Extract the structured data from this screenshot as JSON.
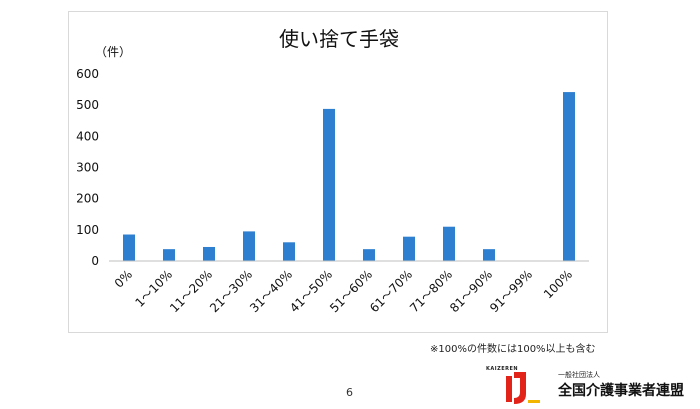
{
  "chart_data": {
    "type": "bar",
    "title": "使い捨て手袋",
    "ylabel": "（件）",
    "xlabel": "",
    "ylim": [
      0,
      600
    ],
    "yticks": [
      0,
      100,
      200,
      300,
      400,
      500,
      600
    ],
    "categories": [
      "0%",
      "1～10%",
      "11～20%",
      "21～30%",
      "31～40%",
      "41～50%",
      "51～60%",
      "61～70%",
      "71～80%",
      "81～90%",
      "91～99%",
      "100%"
    ],
    "values": [
      85,
      38,
      45,
      95,
      60,
      488,
      38,
      78,
      110,
      38,
      0,
      542
    ],
    "color": "#2e7fd0",
    "grid": false,
    "legend": "none"
  },
  "note": "※100%の件数には100%以上も含む",
  "page_number": "6",
  "logo": {
    "kaizen_text": "KAIZEREN",
    "org_small": "一般社団法人",
    "org_name": "全国介護事業者連盟"
  }
}
